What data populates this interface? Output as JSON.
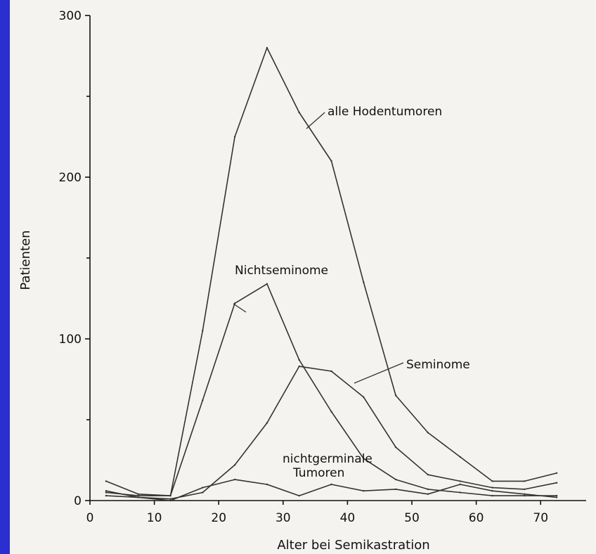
{
  "chart_data": {
    "type": "line",
    "xlabel": "Alter bei Semikastration",
    "ylabel": "Patienten",
    "xlim": [
      0,
      75
    ],
    "ylim": [
      0,
      300
    ],
    "x_ticks": [
      0,
      10,
      20,
      30,
      40,
      50,
      60,
      70
    ],
    "y_ticks": [
      0,
      100,
      200,
      300
    ],
    "y_minor_ticks": [
      50,
      150,
      250
    ],
    "grid": false,
    "series": [
      {
        "name": "alle Hodentumoren",
        "x": [
          2.5,
          7.5,
          12.5,
          17.5,
          22.5,
          27.5,
          32.5,
          37.5,
          42.5,
          47.5,
          52.5,
          57.5,
          62.5,
          67.5,
          72.5
        ],
        "values": [
          5,
          3,
          3,
          105,
          225,
          280,
          240,
          210,
          135,
          65,
          42,
          27,
          12,
          12,
          17
        ]
      },
      {
        "name": "Nichtseminome",
        "x": [
          2.5,
          7.5,
          12.5,
          17.5,
          22.5,
          27.5,
          32.5,
          37.5,
          42.5,
          47.5,
          52.5,
          57.5,
          62.5,
          67.5,
          72.5
        ],
        "values": [
          12,
          4,
          3,
          62,
          122,
          134,
          87,
          55,
          26,
          13,
          7,
          5,
          3,
          3,
          3
        ]
      },
      {
        "name": "Seminome",
        "x": [
          2.5,
          7.5,
          12.5,
          17.5,
          22.5,
          27.5,
          32.5,
          37.5,
          42.5,
          47.5,
          52.5,
          57.5,
          62.5,
          67.5,
          72.5
        ],
        "values": [
          3,
          2,
          1,
          5,
          22,
          48,
          83,
          80,
          64,
          33,
          16,
          12,
          8,
          7,
          11
        ]
      },
      {
        "name": "nichtgerminale Tumoren",
        "x": [
          2.5,
          7.5,
          12.5,
          17.5,
          22.5,
          27.5,
          32.5,
          37.5,
          42.5,
          47.5,
          52.5,
          57.5,
          62.5,
          67.5,
          72.5
        ],
        "values": [
          6,
          2,
          0,
          8,
          13,
          10,
          3,
          10,
          6,
          7,
          4,
          10,
          6,
          4,
          2
        ]
      }
    ],
    "annotations": [
      {
        "lines": [
          "alle Hodentumoren"
        ],
        "series": "alle Hodentumoren"
      },
      {
        "lines": [
          "Nichtseminome"
        ],
        "series": "Nichtseminome"
      },
      {
        "lines": [
          "Seminome"
        ],
        "series": "Seminome"
      },
      {
        "lines": [
          "nichtgerminale",
          "Tumoren"
        ],
        "series": "nichtgerminale Tumoren"
      }
    ]
  },
  "colors": {
    "slide_background": "#2b2fd0",
    "plot_background": "#f4f3ef",
    "lines": "#333333"
  }
}
